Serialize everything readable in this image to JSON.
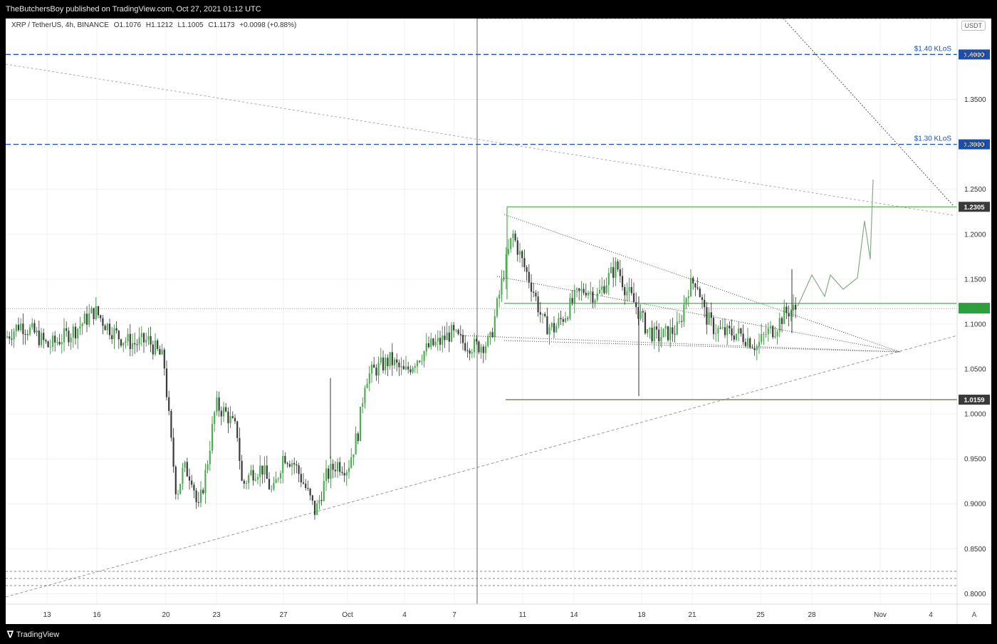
{
  "header": {
    "published": "TheButchersBoy published on TradingView.com, Oct 27, 2021 01:12 UTC"
  },
  "symbol_info": {
    "pair": "XRP / TetherUS, 4h, BINANCE",
    "open": "O1.1076",
    "high": "H1.1212",
    "low": "L1.1005",
    "close": "C1.1173",
    "change": "+0.0098 (+0.88%)"
  },
  "currency_button": "USDT",
  "auto_button": "A",
  "footer": {
    "logo_text": "TradingView"
  },
  "colors": {
    "up": "#26a69a",
    "green_line": "#4caf50",
    "blue_level": "#1e4fa8",
    "price_badge_dark": "#3a3a3a",
    "current_price_green": "#2e9e3f"
  },
  "chart_data": {
    "type": "candlestick",
    "y_axis": {
      "ticks": [
        "1.4000",
        "1.3500",
        "1.3000",
        "1.2500",
        "1.2000",
        "1.1500",
        "1.1000",
        "1.0500",
        "1.0000",
        "0.9500",
        "0.9000",
        "0.8500",
        "0.8000"
      ],
      "range": [
        0.79,
        1.44
      ]
    },
    "x_axis": {
      "ticks": [
        "13",
        "16",
        "20",
        "23",
        "27",
        "Oct",
        "4",
        "7",
        "11",
        "14",
        "18",
        "21",
        "25",
        "28",
        "Nov",
        "4"
      ]
    },
    "horizontal_levels": [
      {
        "price": 1.4,
        "label": "$1.40 KLoS",
        "badge": "1.4000"
      },
      {
        "price": 1.3,
        "label": "$1.30 KLoS",
        "badge": "1.3000"
      }
    ],
    "range_box": {
      "top": 1.2305,
      "bottom": 1.0159,
      "top_badge": "1.2305",
      "bottom_badge": "1.0159"
    },
    "resistance_line": 1.123,
    "current_price_dotted": 1.1173,
    "grid": true
  }
}
